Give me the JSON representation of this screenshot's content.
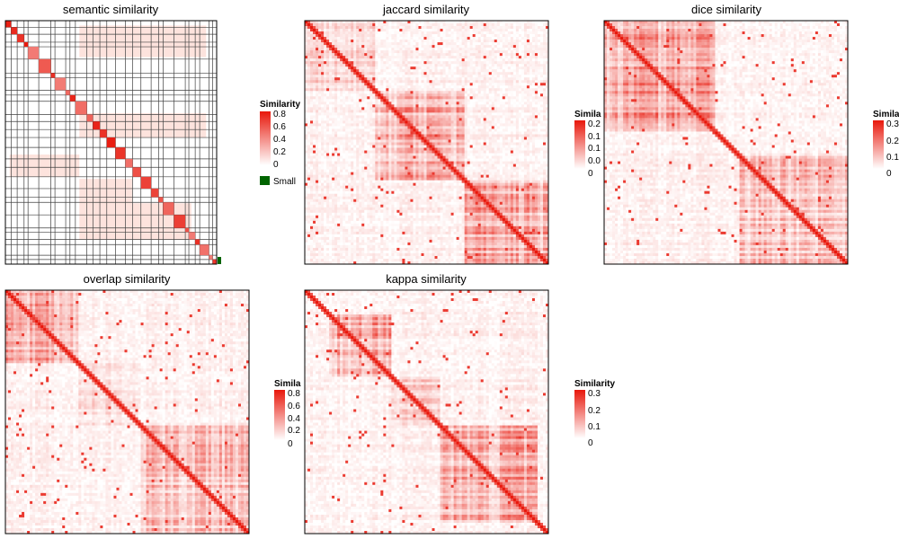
{
  "chart_data": [
    {
      "type": "heatmap",
      "title": "semantic similarity",
      "legend_title": "Similarity",
      "legend_ticks": [
        "0.8",
        "0.6",
        "0.4",
        "0.2",
        "0"
      ],
      "extra_legend": "Small",
      "value_range": [
        0,
        0.8
      ],
      "structure": "sparse block-diagonal with cluster grid lines"
    },
    {
      "type": "heatmap",
      "title": "jaccard similarity",
      "legend_title": "Simila",
      "legend_ticks": [
        "0.2",
        "0.1",
        "0.1",
        "0.0",
        "0"
      ],
      "value_range": [
        0,
        0.2
      ],
      "structure": "dense heatmap with strong diagonal"
    },
    {
      "type": "heatmap",
      "title": "dice similarity",
      "legend_title": "Simila",
      "legend_ticks": [
        "0.3",
        "0.2",
        "0.1",
        "0"
      ],
      "value_range": [
        0,
        0.3
      ],
      "structure": "dense heatmap with strong diagonal"
    },
    {
      "type": "heatmap",
      "title": "overlap similarity",
      "legend_title": "Simila",
      "legend_ticks": [
        "0.8",
        "0.6",
        "0.4",
        "0.2",
        "0"
      ],
      "value_range": [
        0,
        0.8
      ],
      "structure": "dense heatmap with strong diagonal"
    },
    {
      "type": "heatmap",
      "title": "kappa similarity",
      "legend_title": "Similarity",
      "legend_ticks": [
        "0.3",
        "0.2",
        "0.1",
        "0"
      ],
      "value_range": [
        0,
        0.3
      ],
      "structure": "dense heatmap with strong diagonal"
    }
  ],
  "colors": {
    "low": "#ffffff",
    "high": "#e8170b",
    "border": "#000000",
    "cluster_line": "#404040",
    "small_legend": "#006400"
  }
}
